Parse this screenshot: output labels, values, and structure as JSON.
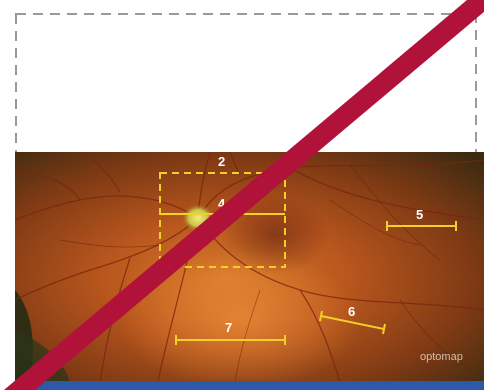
{
  "image": {
    "subject": "optomap wide-field retinal fundus photograph with yellow measurement markers",
    "watermark": "optomap"
  },
  "markers": {
    "label_2": "2",
    "label_4": "4",
    "label_5": "5",
    "label_6": "6",
    "label_7": "7"
  },
  "colors": {
    "marker": "#f3cf2a",
    "strike": "#b0123a",
    "bottom_bar": "#2d5aa8",
    "dashed_frame": "#9a9a9a"
  }
}
